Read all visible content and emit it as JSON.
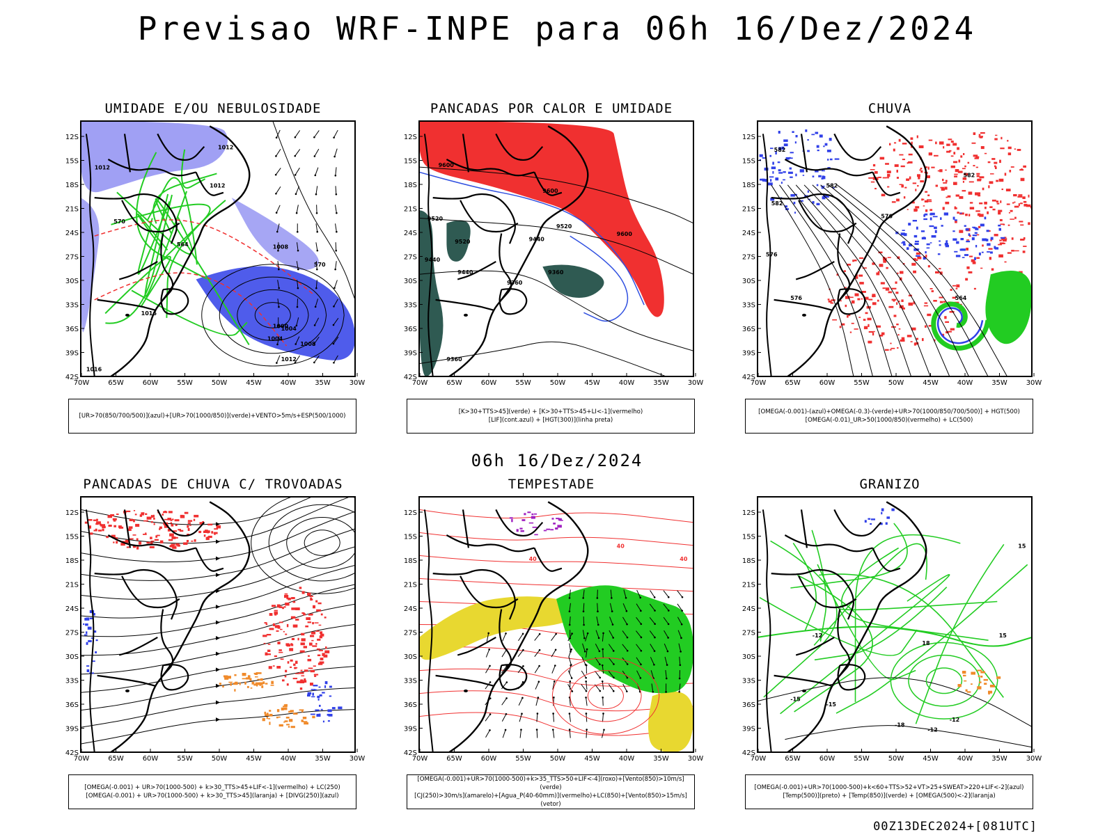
{
  "title": "Previsao WRF-INPE  para 06h 16/Dez/2024",
  "mid_title": "06h 16/Dez/2024",
  "footer": "00Z13DEC2024+[081UTC]",
  "axes": {
    "lat_labels": [
      "12S",
      "15S",
      "18S",
      "21S",
      "24S",
      "27S",
      "30S",
      "33S",
      "36S",
      "39S",
      "42S"
    ],
    "lon_labels": [
      "70W",
      "65W",
      "60W",
      "55W",
      "50W",
      "45W",
      "40W",
      "35W",
      "30W"
    ]
  },
  "colors": {
    "humid_blue": "#8080f0",
    "deep_blue": "#3040e8",
    "green": "#22cc22",
    "red": "#f03030",
    "dark_teal": "#2f5a52",
    "yellow": "#e8d830",
    "orange": "#f08a2a",
    "purple": "#a020c0"
  },
  "panels": [
    {
      "title": "UMIDADE E/OU NEBULOSIDADE",
      "legend": [
        "[UR>70(850/700/500)](azul)+[UR>70(1000/850)](verde)+VENTO>5m/s+ESP(500/1000)"
      ],
      "contour_labels": [
        "1012",
        "1012",
        "1012",
        "1008",
        "1004",
        "1000",
        "1004",
        "1008",
        "1012",
        "1016",
        "1016",
        "564",
        "570",
        "570"
      ]
    },
    {
      "title": "PANCADAS POR CALOR E UMIDADE",
      "legend": [
        "[K>30+TTS>45](verde) + [K>30+TTS>45+LI<-1](vermelho)",
        "[LIF](cont.azul) + [HGT(300)](linha preta)"
      ],
      "contour_labels": [
        "9600",
        "9600",
        "9600",
        "9520",
        "9520",
        "9520",
        "9440",
        "9440",
        "9440",
        "9360",
        "9360",
        "9360"
      ]
    },
    {
      "title": "CHUVA",
      "legend": [
        "[OMEGA(-0.001)-(azul)+OMEGA(-0.3)-(verde)+UR>70(1000/850/700/500)] + HGT(500)",
        "[OMEGA(-0.01)_UR>50(1000/850)(vermelho) + LC(500)"
      ],
      "contour_labels": [
        "582",
        "582",
        "582",
        "576",
        "576",
        "576",
        "564",
        "582"
      ]
    },
    {
      "title": "PANCADAS DE CHUVA C/ TROVOADAS",
      "legend": [
        "[OMEGA(-0.001) + UR>70(1000-500) + k>30_TTS>45+LIF<-1](vermelho) + LC(250)",
        "[OMEGA(-0.001) + UR>70(1000-500) + k>30_TTS>45](laranja) + [DIVG(250)](azul)"
      ],
      "contour_labels": []
    },
    {
      "title": "TEMPESTADE",
      "legend": [
        "[OMEGA(-0.001)+UR>70(1000-500)+k>35_TTS>50+LIF<-4](roxo)+[Vento(850)>10m/s](verde)",
        "[CJ(250)>30m/s](amarelo)+[Agua_P(40-60mm)](vermelho)+LC(850)+[Vento(850)>15m/s](vetor)"
      ],
      "contour_labels": [
        "40",
        "40",
        "40"
      ]
    },
    {
      "title": "GRANIZO",
      "legend": [
        "[OMEGA(-0.001)+UR>70(1000-500)+k<60+TTS>52+VT>25+SWEAT>220+LIF<-2](azul)",
        "[Temp(500)](preto) + [Temp(850)](verde) + [OMEGA(500)<-2](laranja)"
      ],
      "contour_labels": [
        "-12",
        "-12",
        "-15",
        "-15",
        "-18",
        "-12",
        "15",
        "15",
        "18"
      ]
    }
  ]
}
